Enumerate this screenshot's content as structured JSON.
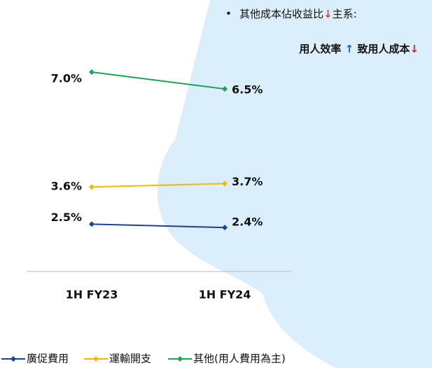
{
  "chart_data": {
    "type": "line",
    "bullet": "•",
    "note_1": [
      "其他成本佔收益比",
      "↓",
      "主系:"
    ],
    "note_2": [
      "用人效率 ",
      "↑",
      " 致用人成本",
      "↓"
    ],
    "categories": [
      "1H FY23",
      "1H FY24"
    ],
    "series": [
      {
        "name": "廣促費用",
        "color": "#1f3fa0",
        "values": [
          2.5,
          2.4
        ],
        "value_labels": [
          "2.5%",
          "2.4%"
        ]
      },
      {
        "name": "運輸開支",
        "color": "#f5b800",
        "values": [
          3.6,
          3.7
        ],
        "value_labels": [
          "3.6%",
          "3.7%"
        ]
      },
      {
        "name": "其他(用人費用為主)",
        "color": "#1aa550",
        "values": [
          7.0,
          6.5
        ],
        "value_labels": [
          "7.0%",
          "6.5%"
        ]
      }
    ],
    "ylim": [
      1.1,
      7.6
    ],
    "legend": "bottom"
  }
}
